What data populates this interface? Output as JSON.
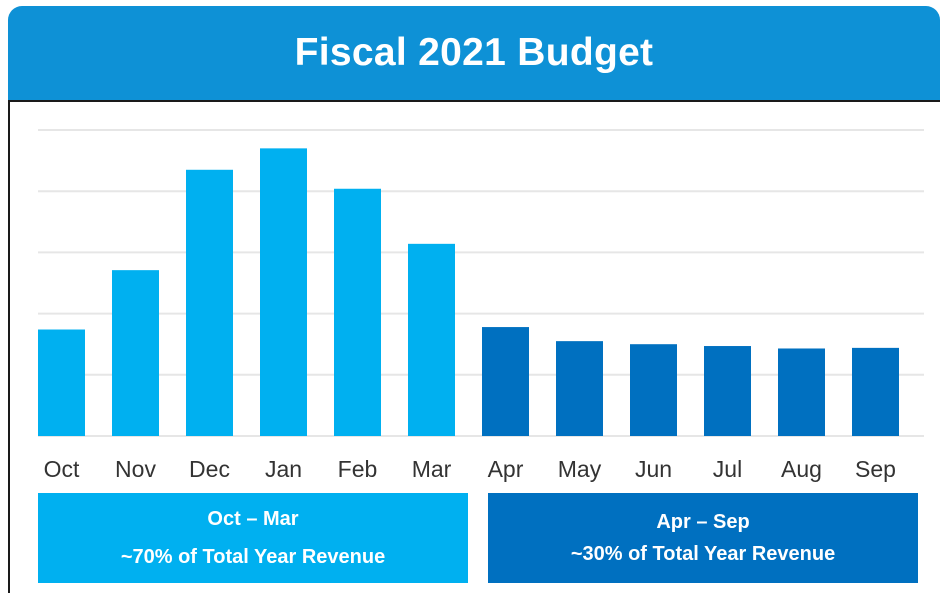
{
  "chart_data": {
    "type": "bar",
    "title": "Fiscal 2021 Budget",
    "categories": [
      "Oct",
      "Nov",
      "Dec",
      "Jan",
      "Feb",
      "Mar",
      "Apr",
      "May",
      "Jun",
      "Jul",
      "Aug",
      "Sep"
    ],
    "values": [
      1.74,
      2.71,
      4.35,
      4.7,
      4.04,
      3.14,
      1.78,
      1.55,
      1.5,
      1.47,
      1.43,
      1.44
    ],
    "colors": [
      "#00b0f0",
      "#00b0f0",
      "#00b0f0",
      "#00b0f0",
      "#00b0f0",
      "#00b0f0",
      "#0070c0",
      "#0070c0",
      "#0070c0",
      "#0070c0",
      "#0070c0",
      "#0070c0"
    ],
    "ylim": [
      0,
      5
    ],
    "grid": true,
    "gridline_color": "#e6e6e6"
  },
  "groups": [
    {
      "line1": "Oct – Mar",
      "line2": "~70% of Total Year Revenue",
      "color": "#00b0f0"
    },
    {
      "line1": "Apr – Sep",
      "line2": "~30% of Total Year Revenue",
      "color": "#0070c0"
    }
  ]
}
